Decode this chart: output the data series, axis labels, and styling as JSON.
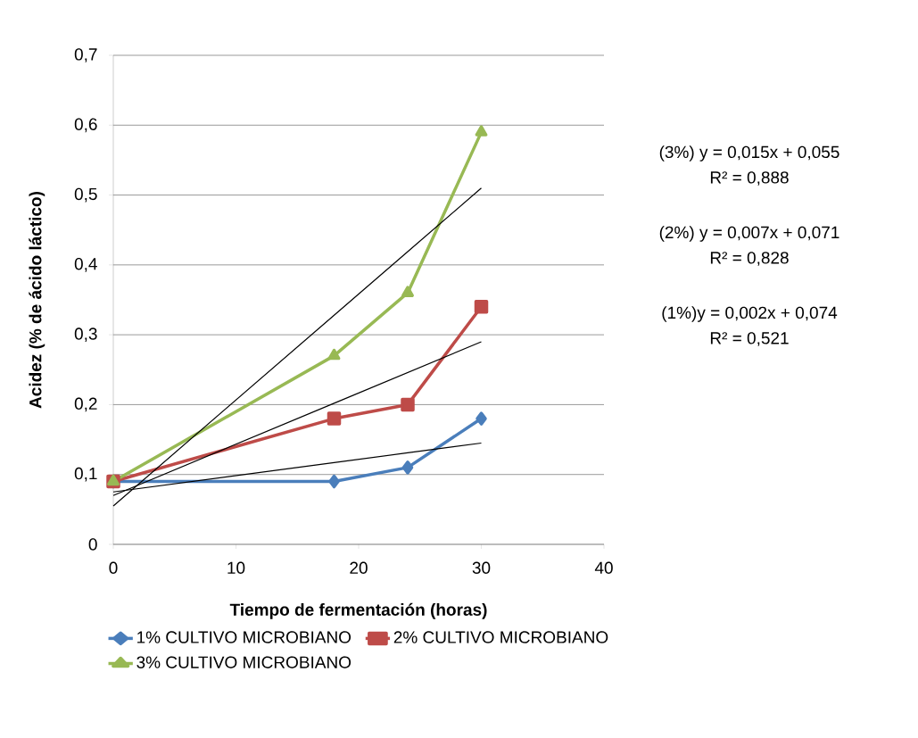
{
  "chart_data": {
    "type": "line",
    "xlabel": "Tiempo de fermentación (horas)",
    "ylabel": "Acidez (% de ácido láctico)",
    "x": [
      0,
      18,
      24,
      30
    ],
    "series": [
      {
        "name": "1% CULTIVO MICROBIANO",
        "color": "#4a7ebb",
        "marker": "diamond",
        "values": [
          0.09,
          0.09,
          0.11,
          0.18
        ]
      },
      {
        "name": "2% CULTIVO MICROBIANO",
        "color": "#be4b48",
        "marker": "square",
        "values": [
          0.09,
          0.18,
          0.2,
          0.34
        ]
      },
      {
        "name": "3% CULTIVO MICROBIANO",
        "color": "#98b954",
        "marker": "triangle",
        "values": [
          0.09,
          0.27,
          0.36,
          0.59
        ]
      },
      {
        "type": "line",
        "color": "#000000",
        "marker": "none",
        "values": [
          0.055,
          0.328,
          0.419,
          0.51
        ]
      },
      {
        "type": "line",
        "color": "#000000",
        "marker": "none",
        "values": [
          0.07,
          0.202,
          0.246,
          0.29
        ]
      },
      {
        "type": "line",
        "color": "#000000",
        "marker": "none",
        "values": [
          0.075,
          0.117,
          0.131,
          0.145
        ]
      }
    ],
    "xlim": [
      0,
      40
    ],
    "xticks": [
      0,
      10,
      20,
      30,
      40
    ],
    "ylim": [
      0,
      0.7
    ],
    "yticks": [
      0,
      {
        "value": 0.1,
        "label": "0,1"
      },
      {
        "value": 0.2,
        "label": "0,2"
      },
      {
        "value": 0.3,
        "label": "0,3"
      },
      {
        "value": 0.4,
        "label": "0,4"
      },
      {
        "value": 0.5,
        "label": "0,5"
      },
      {
        "value": 0.6,
        "label": "0,6"
      },
      {
        "value": 0.7,
        "label": "0,7"
      }
    ],
    "grid": "y",
    "legend": "bottom",
    "annotations": [
      "(3%) y = 0,015x + 0,055",
      "R² = 0,888",
      "(2%) y = 0,007x + 0,071",
      "R² = 0,828",
      "(1%)y = 0,002x + 0,074",
      "R² = 0,521"
    ]
  }
}
